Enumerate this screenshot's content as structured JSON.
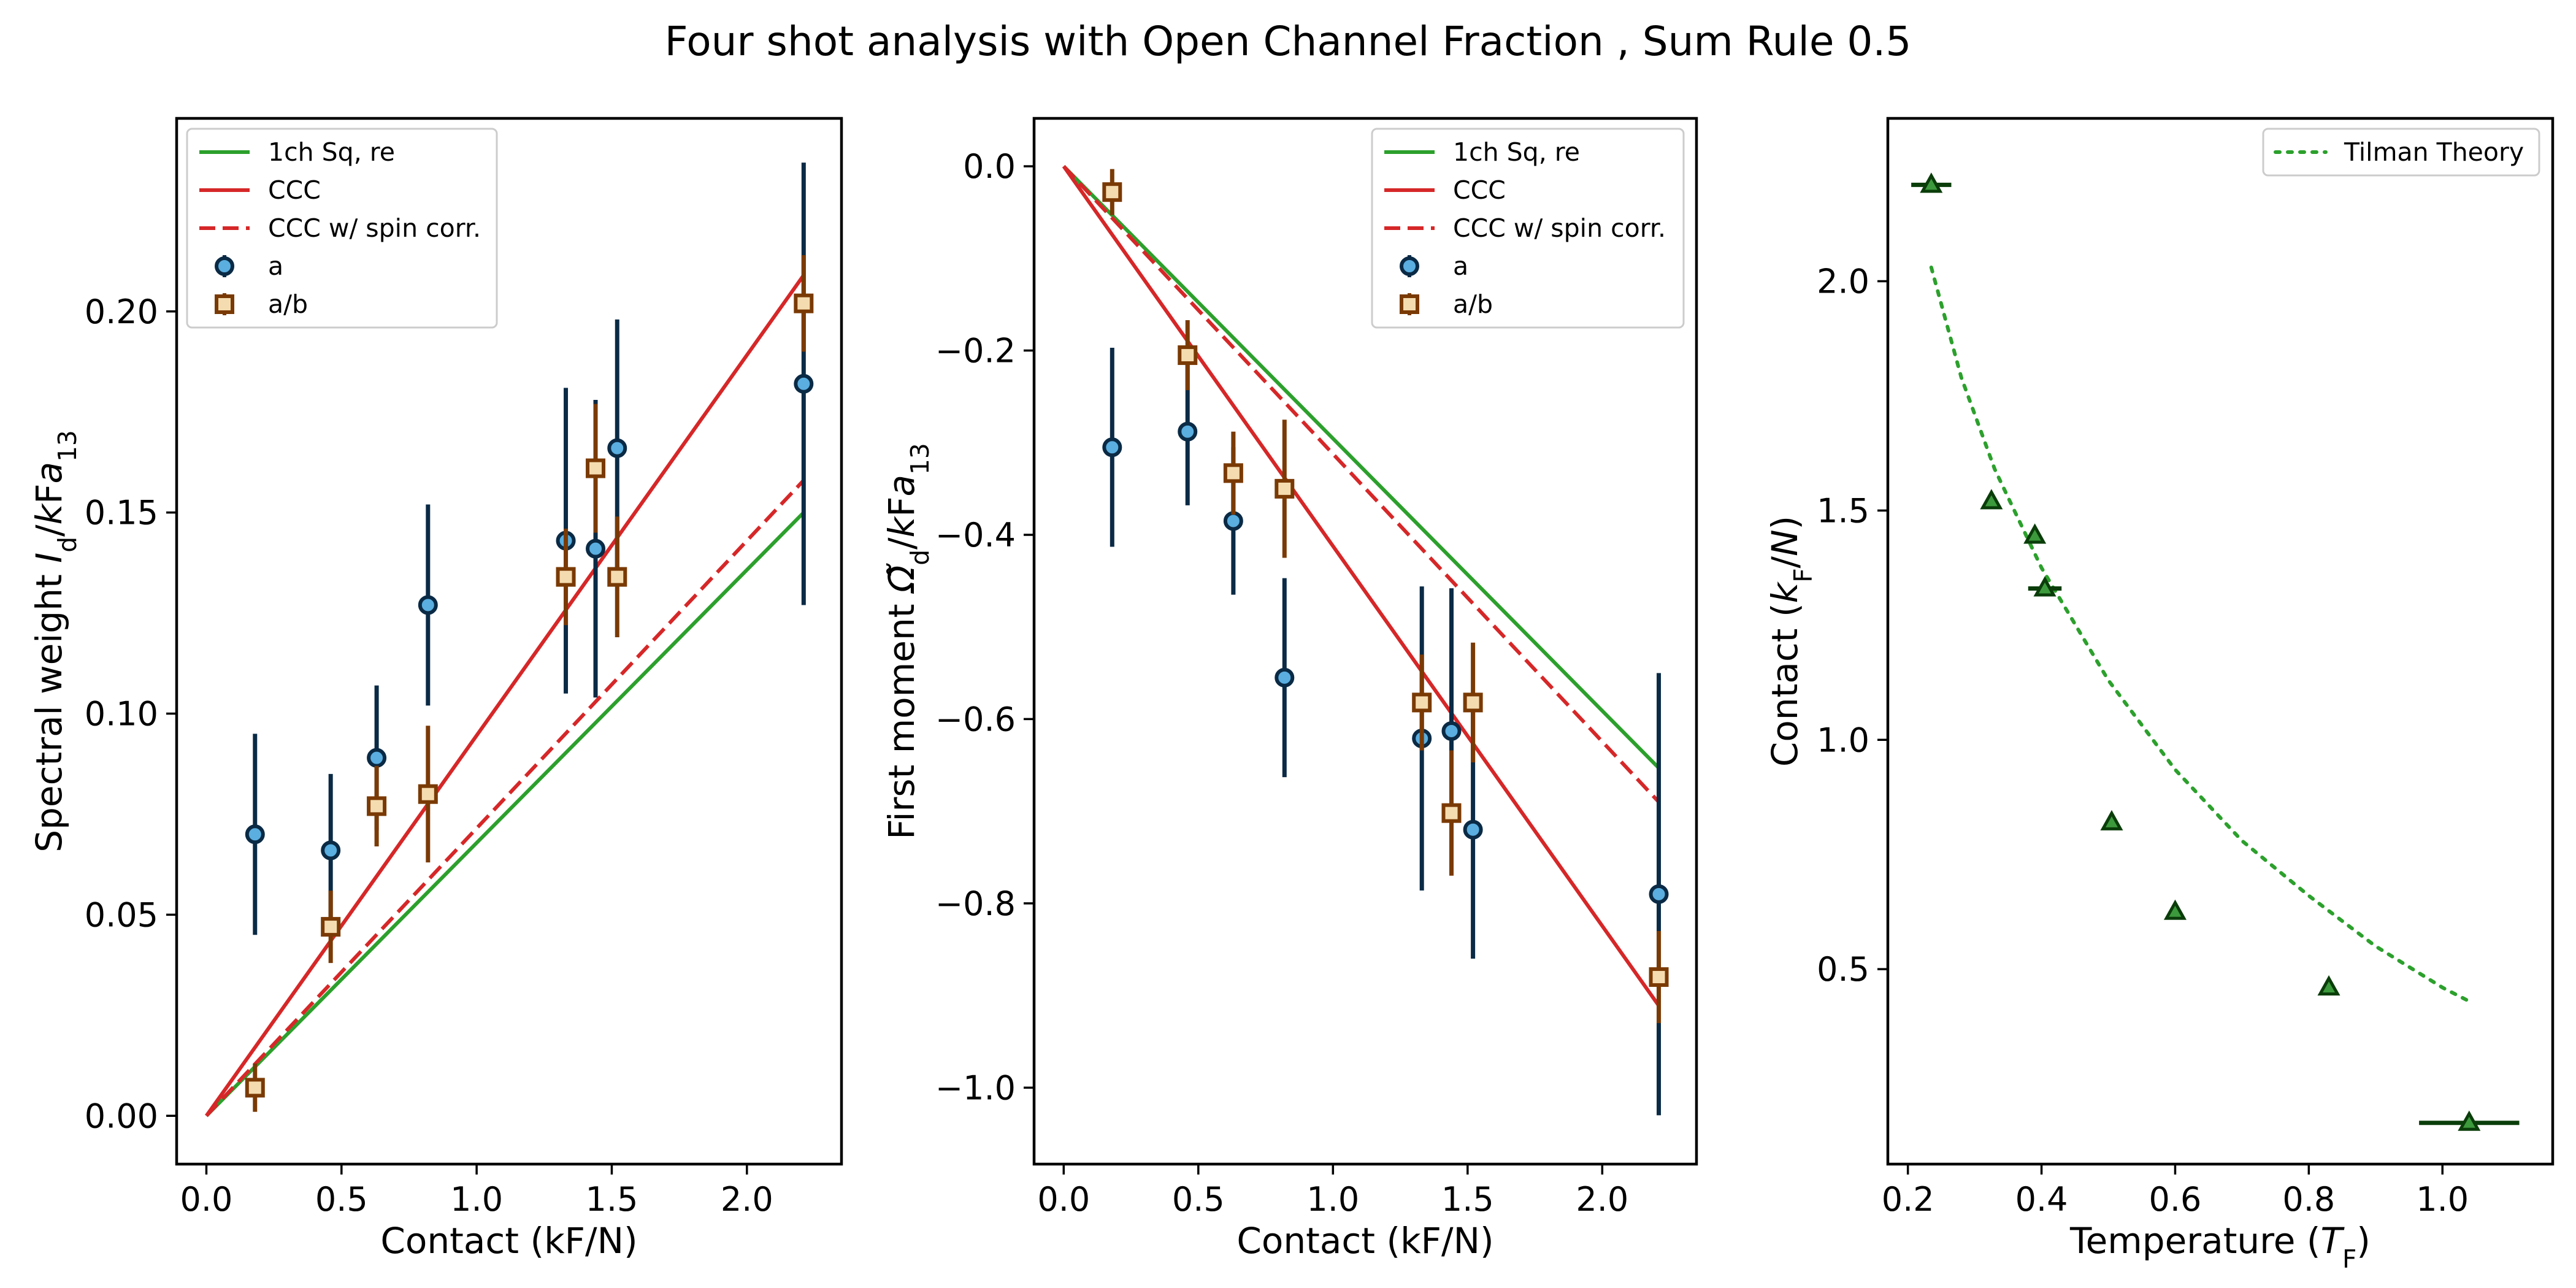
{
  "title": "Four shot analysis with Open Channel Fraction , Sum Rule 0.5",
  "colors": {
    "green": "#2ca02c",
    "red": "#d62728",
    "blue_face": "#5aaee0",
    "blue_edge": "#0a2a45",
    "orange_face": "#f5dcb0",
    "orange_edge": "#7a3a05",
    "tri_face": "#3c9a3c",
    "tri_edge": "#0a3d0a"
  },
  "chart_data": [
    {
      "type": "scatter",
      "xlabel": "Contact (kF/N)",
      "ylabel": "Spectral weight I_d/k_Fa_13",
      "ylabel_parts": [
        "Spectral weight ",
        "I",
        "d",
        "/",
        "k",
        "F",
        "a",
        "13"
      ],
      "xlim": [
        -0.11,
        2.35
      ],
      "ylim": [
        -0.012,
        0.248
      ],
      "xticks": [
        0.0,
        0.5,
        1.0,
        1.5,
        2.0
      ],
      "xtick_labels": [
        "0.0",
        "0.5",
        "1.0",
        "1.5",
        "2.0"
      ],
      "yticks": [
        0.0,
        0.05,
        0.1,
        0.15,
        0.2
      ],
      "ytick_labels": [
        "0.00",
        "0.05",
        "0.10",
        "0.15",
        "0.20"
      ],
      "legend_position": "upper-left",
      "lines": [
        {
          "name": "1ch Sq, re",
          "color": "green",
          "style": "solid",
          "x": [
            0,
            2.21
          ],
          "y": [
            0,
            0.15
          ]
        },
        {
          "name": "CCC",
          "color": "red",
          "style": "solid",
          "x": [
            0,
            2.21
          ],
          "y": [
            0,
            0.209
          ]
        },
        {
          "name": "CCC w/ spin corr.",
          "color": "red",
          "style": "dashed",
          "x": [
            0,
            2.21
          ],
          "y": [
            0,
            0.158
          ]
        }
      ],
      "series": [
        {
          "name": "a",
          "marker": "circle",
          "x": [
            0.18,
            0.46,
            0.63,
            0.82,
            1.33,
            1.44,
            1.52,
            2.21
          ],
          "y": [
            0.07,
            0.066,
            0.089,
            0.127,
            0.143,
            0.141,
            0.166,
            0.182
          ],
          "err": [
            0.025,
            0.019,
            0.018,
            0.025,
            0.038,
            0.037,
            0.032,
            0.055
          ]
        },
        {
          "name": "a/b",
          "marker": "square",
          "x": [
            0.18,
            0.46,
            0.63,
            0.82,
            1.33,
            1.44,
            1.52,
            2.21
          ],
          "y": [
            0.007,
            0.047,
            0.077,
            0.08,
            0.134,
            0.161,
            0.134,
            0.202
          ],
          "err": [
            0.006,
            0.009,
            0.01,
            0.017,
            0.012,
            0.016,
            0.015,
            0.012
          ]
        }
      ]
    },
    {
      "type": "scatter",
      "xlabel": "Contact (kF/N)",
      "ylabel": "First moment Ω̃_d k_Fa_13",
      "ylabel_parts": [
        "First moment ",
        "Ω̃",
        "d",
        "/",
        "k",
        "F",
        "a",
        "13"
      ],
      "xlim": [
        -0.11,
        2.35
      ],
      "ylim": [
        -1.083,
        0.052
      ],
      "xticks": [
        0.0,
        0.5,
        1.0,
        1.5,
        2.0
      ],
      "xtick_labels": [
        "0.0",
        "0.5",
        "1.0",
        "1.5",
        "2.0"
      ],
      "yticks": [
        0.0,
        -0.2,
        -0.4,
        -0.6,
        -0.8,
        -1.0
      ],
      "ytick_labels": [
        "0.0",
        "−0.2",
        "−0.4",
        "−0.6",
        "−0.8",
        "−1.0"
      ],
      "legend_position": "upper-right",
      "lines": [
        {
          "name": "1ch Sq, re",
          "color": "green",
          "style": "solid",
          "x": [
            0,
            2.21
          ],
          "y": [
            0,
            -0.653
          ]
        },
        {
          "name": "CCC",
          "color": "red",
          "style": "solid",
          "x": [
            0,
            2.21
          ],
          "y": [
            0,
            -0.911
          ]
        },
        {
          "name": "CCC w/ spin corr.",
          "color": "red",
          "style": "dashed",
          "x": [
            0,
            2.21
          ],
          "y": [
            0,
            -0.69
          ]
        }
      ],
      "series": [
        {
          "name": "a",
          "marker": "circle",
          "x": [
            0.18,
            0.46,
            0.63,
            0.82,
            1.33,
            1.44,
            1.52,
            2.21
          ],
          "y": [
            -0.305,
            -0.288,
            -0.385,
            -0.555,
            -0.621,
            -0.613,
            -0.72,
            -0.79
          ],
          "err": [
            0.108,
            0.08,
            0.08,
            0.108,
            0.165,
            0.155,
            0.14,
            0.24
          ]
        },
        {
          "name": "a/b",
          "marker": "square",
          "x": [
            0.18,
            0.46,
            0.63,
            0.82,
            1.33,
            1.44,
            1.52,
            2.21
          ],
          "y": [
            -0.028,
            -0.205,
            -0.333,
            -0.35,
            -0.582,
            -0.702,
            -0.582,
            -0.88
          ],
          "err": [
            0.025,
            0.038,
            0.045,
            0.075,
            0.052,
            0.068,
            0.065,
            0.05
          ]
        }
      ]
    },
    {
      "type": "scatter",
      "xlabel": "Temperature (T_F)",
      "xlabel_parts": [
        "Temperature (",
        "T",
        "F",
        ")"
      ],
      "ylabel": "Contact (k_F/N)",
      "ylabel_parts": [
        "Contact (",
        "k",
        "F",
        "/",
        "N",
        ")"
      ],
      "xlim": [
        0.17,
        1.165
      ],
      "ylim": [
        0.075,
        2.355
      ],
      "xticks": [
        0.2,
        0.4,
        0.6,
        0.8,
        1.0
      ],
      "xtick_labels": [
        "0.2",
        "0.4",
        "0.6",
        "0.8",
        "1.0"
      ],
      "yticks": [
        0.5,
        1.0,
        1.5,
        2.0
      ],
      "ytick_labels": [
        "0.5",
        "1.0",
        "1.5",
        "2.0"
      ],
      "legend_position": "upper-right",
      "lines": [
        {
          "name": "Tilman Theory",
          "color": "green",
          "style": "dotted",
          "x": [
            0.235,
            0.28,
            0.33,
            0.4,
            0.5,
            0.6,
            0.7,
            0.8,
            0.9,
            1.0,
            1.04
          ],
          "y": [
            2.03,
            1.79,
            1.59,
            1.375,
            1.13,
            0.935,
            0.78,
            0.66,
            0.55,
            0.46,
            0.43
          ]
        }
      ],
      "series": [
        {
          "name": "",
          "marker": "triangle",
          "x": [
            0.235,
            0.325,
            0.39,
            0.405,
            0.505,
            0.6,
            0.83,
            1.04
          ],
          "y": [
            2.21,
            1.52,
            1.445,
            1.33,
            0.82,
            0.625,
            0.46,
            0.165
          ],
          "xerr": [
            0.03,
            0,
            0,
            0.025,
            0,
            0,
            0,
            0.075
          ]
        }
      ]
    }
  ]
}
